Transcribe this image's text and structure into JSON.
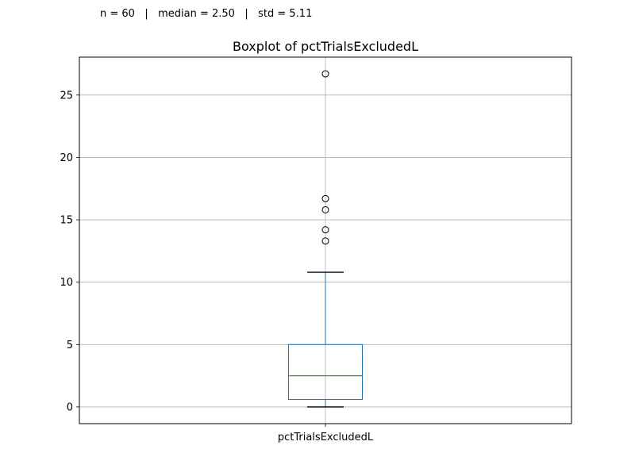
{
  "stats": {
    "text": "n = 60   |   median = 2.50   |   std = 5.11"
  },
  "chart_data": {
    "type": "box",
    "title": "Boxplot of pctTrialsExcludedL",
    "categories": [
      "pctTrialsExcludedL"
    ],
    "box": {
      "whisker_low": 0.0,
      "q1": 0.6,
      "median": 2.5,
      "q3": 5.0,
      "whisker_high": 10.8
    },
    "outliers": [
      13.3,
      14.2,
      15.8,
      16.7,
      26.7
    ],
    "yticks": [
      0,
      5,
      10,
      15,
      20,
      25
    ],
    "ylim": [
      -1.34,
      28.04
    ],
    "grid": true,
    "colors": {
      "box": "#1f77b4",
      "median": "#2ca02c",
      "whisker_cap": "#000000",
      "grid": "#b0b0b0",
      "outlier": "#000000"
    }
  }
}
